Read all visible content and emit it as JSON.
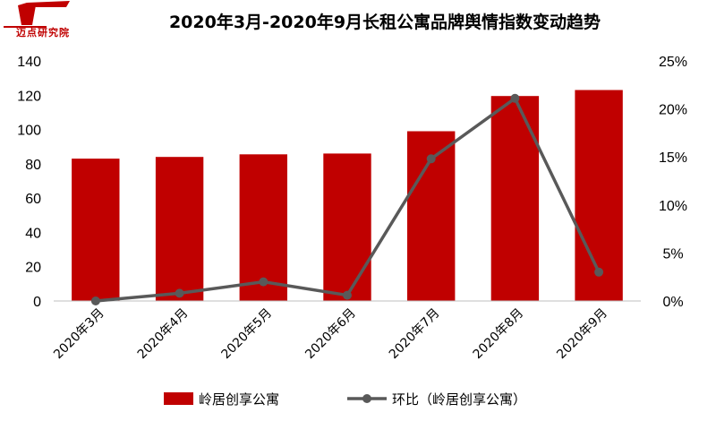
{
  "chart_data": {
    "type": "bar",
    "title": "2020年3月-2020年9月长租公寓品牌舆情指数变动趋势",
    "categories": [
      "2020年3月",
      "2020年4月",
      "2020年5月",
      "2020年6月",
      "2020年7月",
      "2020年8月",
      "2020年9月"
    ],
    "series": [
      {
        "name": "岭居创享公寓",
        "type": "bar",
        "axis": "left",
        "color": "#c00000",
        "values": [
          83,
          84,
          85.5,
          86,
          99,
          119.5,
          123
        ]
      },
      {
        "name": "环比（岭居创享公寓）",
        "type": "line",
        "axis": "right",
        "color": "#595959",
        "values": [
          0.0,
          0.8,
          2.0,
          0.6,
          14.8,
          21.1,
          3.0
        ]
      }
    ],
    "left_axis": {
      "min": 0,
      "max": 140,
      "ticks": [
        "0",
        "20",
        "40",
        "60",
        "80",
        "100",
        "120",
        "140"
      ]
    },
    "right_axis": {
      "min": 0,
      "max": 25,
      "ticks": [
        "0%",
        "5%",
        "10%",
        "15%",
        "20%",
        "25%"
      ]
    },
    "grid": false,
    "legend_position": "bottom"
  },
  "logo": {
    "text": "迈点研究院"
  }
}
